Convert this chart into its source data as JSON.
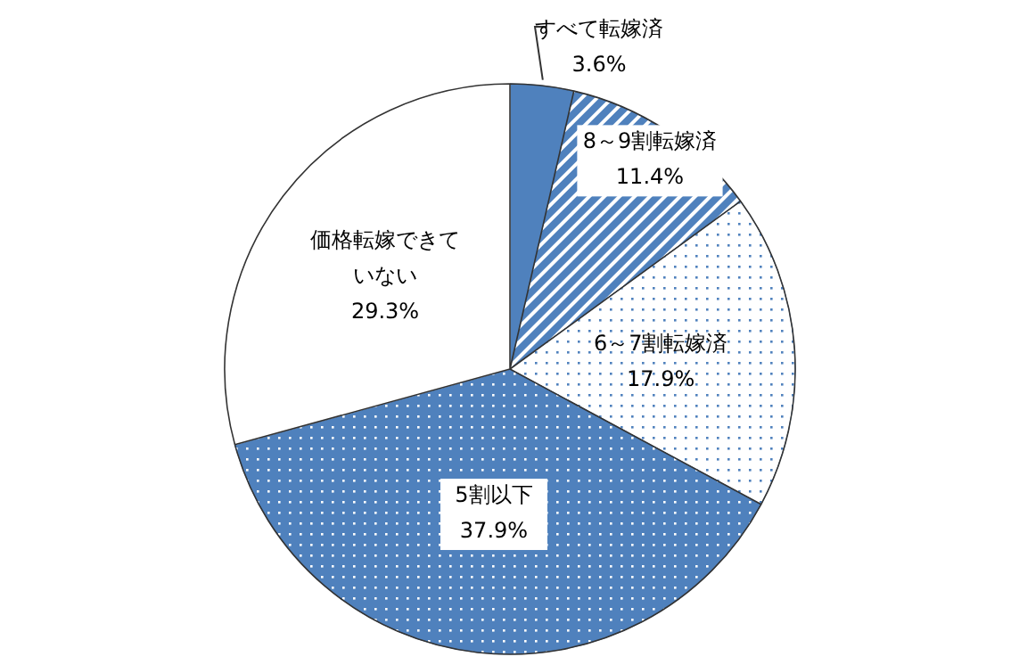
{
  "chart_data": {
    "type": "pie",
    "categories": [
      "すべて転嫁済",
      "8～9割転嫁済",
      "6～7割転嫁済",
      "5割以下",
      "価格転嫁できていない"
    ],
    "values": [
      3.6,
      11.4,
      17.9,
      37.9,
      29.3
    ],
    "value_labels": [
      "3.6%",
      "11.4%",
      "17.9%",
      "37.9%",
      "29.3%"
    ],
    "colors": [
      "#4f81bd",
      "#4f81bd",
      "#4f81bd",
      "#4f81bd",
      "#ffffff"
    ],
    "legend": false
  }
}
